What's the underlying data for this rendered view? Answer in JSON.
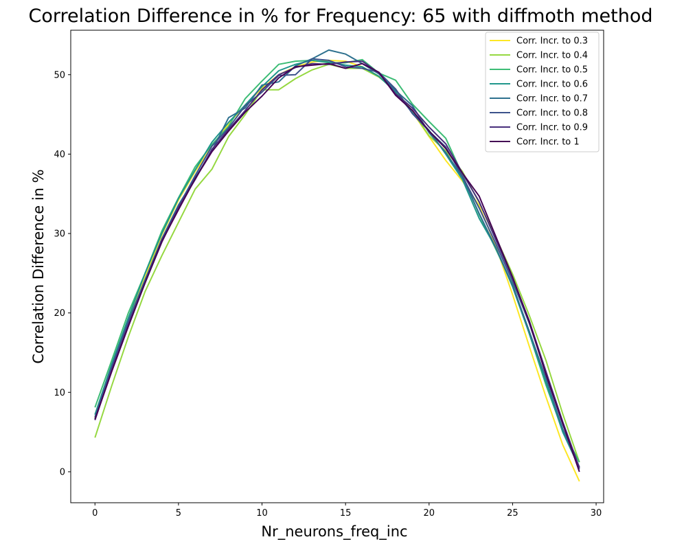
{
  "chart_data": {
    "type": "line",
    "title": "Correlation Difference in % for Frequency:  65 with diffmoth method",
    "xlabel": "Nr_neurons_freq_inc",
    "ylabel": "Correlation Difference in %",
    "xlim": [
      -1.45,
      30.45
    ],
    "ylim": [
      -3.9,
      55.6
    ],
    "xticks": [
      0,
      5,
      10,
      15,
      20,
      25,
      30
    ],
    "yticks": [
      0,
      10,
      20,
      30,
      40,
      50
    ],
    "grid": false,
    "legend_position": "top-right",
    "x": [
      0,
      1,
      2,
      3,
      4,
      5,
      6,
      7,
      8,
      9,
      10,
      11,
      12,
      13,
      14,
      15,
      16,
      17,
      18,
      19,
      20,
      21,
      22,
      23,
      24,
      25,
      26,
      27,
      28,
      29
    ],
    "series": [
      {
        "name": "Corr. Incr. to 0.3",
        "color": "#fde725",
        "values": [
          6.8,
          13.0,
          19.0,
          24.5,
          29.8,
          34.2,
          37.8,
          41.0,
          43.8,
          46.2,
          48.3,
          50.0,
          51.0,
          51.6,
          51.8,
          51.7,
          51.0,
          49.8,
          47.9,
          45.3,
          42.2,
          39.2,
          36.6,
          33.5,
          28.4,
          22.3,
          15.8,
          9.4,
          3.4,
          -1.2
        ]
      },
      {
        "name": "Corr. Incr. to 0.4",
        "color": "#95d840",
        "values": [
          4.3,
          10.8,
          17.0,
          22.7,
          27.2,
          31.4,
          35.6,
          38.1,
          42.2,
          45.0,
          48.1,
          48.1,
          49.5,
          50.6,
          51.3,
          50.8,
          50.8,
          49.7,
          48.0,
          45.4,
          42.3,
          40.4,
          37.8,
          33.9,
          29.5,
          24.9,
          19.7,
          14.0,
          7.3,
          1.2
        ]
      },
      {
        "name": "Corr. Incr. to 0.5",
        "color": "#3cbc75",
        "values": [
          8.1,
          14.0,
          20.0,
          25.0,
          30.3,
          34.5,
          38.4,
          41.2,
          43.5,
          47.0,
          49.2,
          51.3,
          51.7,
          51.8,
          51.5,
          51.5,
          51.9,
          50.2,
          49.3,
          46.3,
          44.1,
          42.0,
          37.4,
          32.4,
          28.0,
          23.6,
          17.4,
          10.9,
          5.2,
          1.2
        ]
      },
      {
        "name": "Corr. Incr. to 0.6",
        "color": "#1f968b",
        "values": [
          7.2,
          13.5,
          19.4,
          25.0,
          30.0,
          34.4,
          38.0,
          41.5,
          44.0,
          46.2,
          48.5,
          50.5,
          51.3,
          51.8,
          51.6,
          51.2,
          51.0,
          49.8,
          47.8,
          45.2,
          43.0,
          40.0,
          36.8,
          31.9,
          28.2,
          23.3,
          17.4,
          11.2,
          5.0,
          0.5
        ]
      },
      {
        "name": "Corr. Incr. to 0.7",
        "color": "#2d708e",
        "values": [
          6.9,
          13.3,
          19.0,
          24.2,
          29.3,
          33.6,
          37.0,
          40.4,
          44.6,
          45.8,
          48.7,
          49.1,
          51.1,
          52.0,
          53.1,
          52.6,
          51.4,
          50.1,
          48.0,
          46.1,
          42.7,
          40.2,
          37.1,
          32.5,
          28.2,
          23.5,
          17.7,
          11.7,
          5.4,
          0.6
        ]
      },
      {
        "name": "Corr. Incr. to 0.8",
        "color": "#3b528b",
        "values": [
          6.7,
          13.0,
          18.9,
          24.0,
          29.3,
          33.4,
          37.3,
          41.0,
          43.3,
          46.1,
          47.8,
          49.9,
          50.0,
          52.0,
          51.8,
          51.0,
          50.8,
          50.3,
          48.2,
          45.1,
          42.9,
          40.9,
          37.2,
          33.2,
          28.7,
          24.0,
          18.7,
          12.4,
          6.0,
          0.3
        ]
      },
      {
        "name": "Corr. Incr. to 0.9",
        "color": "#472d7b",
        "values": [
          6.5,
          12.8,
          18.5,
          23.8,
          28.9,
          33.3,
          36.8,
          40.6,
          43.1,
          45.5,
          48.1,
          50.0,
          50.9,
          51.4,
          51.3,
          51.6,
          51.7,
          50.2,
          47.6,
          45.8,
          43.4,
          41.3,
          37.6,
          34.0,
          29.2,
          24.4,
          19.0,
          12.6,
          6.3,
          0.5
        ]
      },
      {
        "name": "Corr. Incr. to 1",
        "color": "#440154",
        "values": [
          6.6,
          12.6,
          18.3,
          23.8,
          29.0,
          33.0,
          36.9,
          40.3,
          42.9,
          45.3,
          47.3,
          49.6,
          51.0,
          51.2,
          51.4,
          50.8,
          51.4,
          50.3,
          47.4,
          45.5,
          42.9,
          40.7,
          37.6,
          34.7,
          29.6,
          24.5,
          18.9,
          12.2,
          6.1,
          0.0
        ]
      }
    ]
  }
}
